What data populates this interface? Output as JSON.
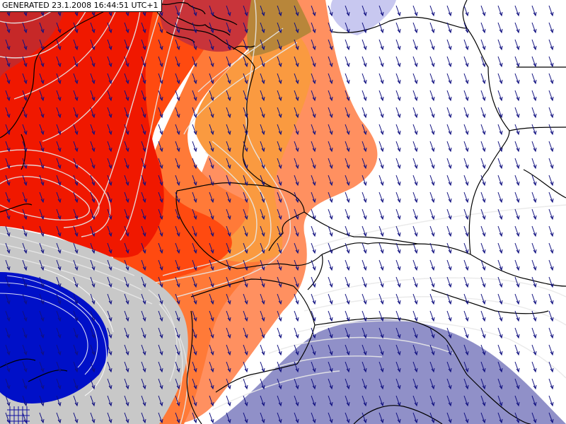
{
  "header": {
    "generated_label": "GENERATED 23.1.2008 16:44:51 UTC+1"
  },
  "map": {
    "field_colors": {
      "dark_red": "#c62828",
      "red": "#f01800",
      "red_orange": "#ff4a10",
      "orange": "#ff7a38",
      "light_orange": "#fa9a40",
      "salmon": "#ff9060",
      "gray": "#c8c8c8",
      "blue": "#0010c8",
      "lavender": "#c8c8f0",
      "slate": "#9090c8",
      "white": "#ffffff"
    },
    "line_colors": {
      "isoline": "#e8e8e8",
      "borders": "#000000",
      "wind_arrows": "#101080"
    }
  }
}
